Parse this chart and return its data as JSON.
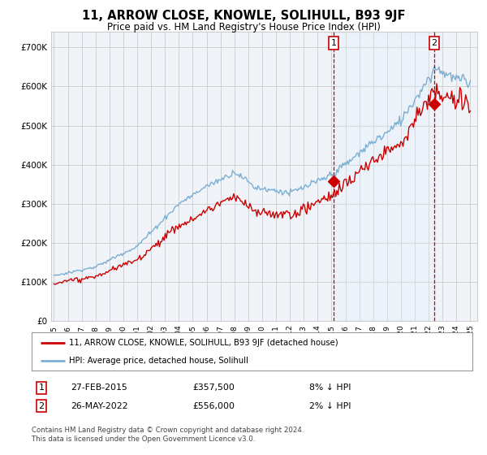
{
  "title": "11, ARROW CLOSE, KNOWLE, SOLIHULL, B93 9JF",
  "subtitle": "Price paid vs. HM Land Registry's House Price Index (HPI)",
  "title_fontsize": 10.5,
  "subtitle_fontsize": 8.5,
  "ylabel_ticks": [
    "£0",
    "£100K",
    "£200K",
    "£300K",
    "£400K",
    "£500K",
    "£600K",
    "£700K"
  ],
  "ytick_values": [
    0,
    100000,
    200000,
    300000,
    400000,
    500000,
    600000,
    700000
  ],
  "ylim": [
    0,
    740000
  ],
  "xlim_start": 1994.8,
  "xlim_end": 2025.5,
  "transaction1_date": 2015.15,
  "transaction1_price": 357500,
  "transaction1_label": "1",
  "transaction2_date": 2022.4,
  "transaction2_price": 556000,
  "transaction2_label": "2",
  "legend_line1": "11, ARROW CLOSE, KNOWLE, SOLIHULL, B93 9JF (detached house)",
  "legend_line2": "HPI: Average price, detached house, Solihull",
  "note1_num": "1",
  "note1_date": "27-FEB-2015",
  "note1_price": "£357,500",
  "note1_pct": "8% ↓ HPI",
  "note2_num": "2",
  "note2_date": "26-MAY-2022",
  "note2_price": "£556,000",
  "note2_pct": "2% ↓ HPI",
  "footer": "Contains HM Land Registry data © Crown copyright and database right 2024.\nThis data is licensed under the Open Government Licence v3.0.",
  "line_color_price": "#cc0000",
  "line_color_hpi": "#7aafd4",
  "shade_color": "#ddeeff",
  "grid_color": "#cccccc",
  "background_color": "#ffffff",
  "plot_bg_color": "#f0f4f8"
}
